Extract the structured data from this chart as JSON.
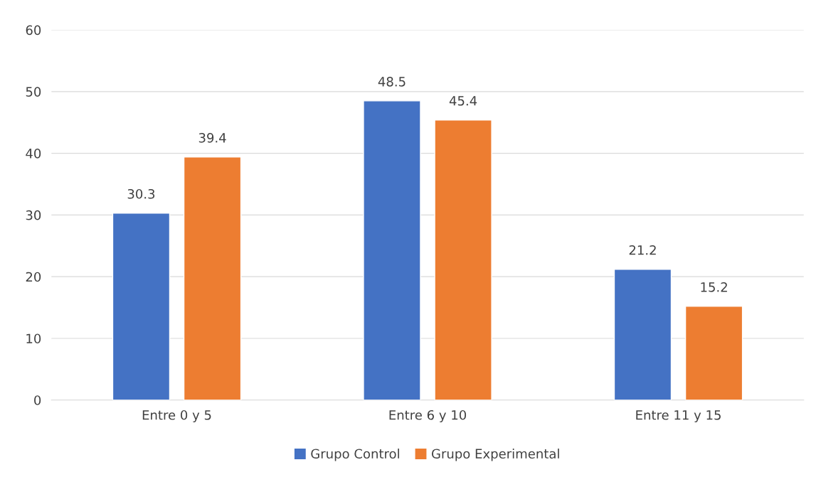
{
  "chart_data": {
    "type": "bar",
    "categories": [
      "Entre 0 y 5",
      "Entre 6 y 10",
      "Entre 11 y 15"
    ],
    "series": [
      {
        "name": "Grupo Control",
        "color": "#4472c4",
        "values": [
          30.3,
          48.5,
          21.2
        ]
      },
      {
        "name": "Grupo Experimental",
        "color": "#ed7d31",
        "values": [
          39.4,
          45.4,
          15.2
        ]
      }
    ],
    "ylim": [
      0,
      60
    ],
    "yticks": [
      0,
      10,
      20,
      30,
      40,
      50,
      60
    ],
    "grid": "y",
    "legend": "bottom",
    "data_labels": true
  }
}
